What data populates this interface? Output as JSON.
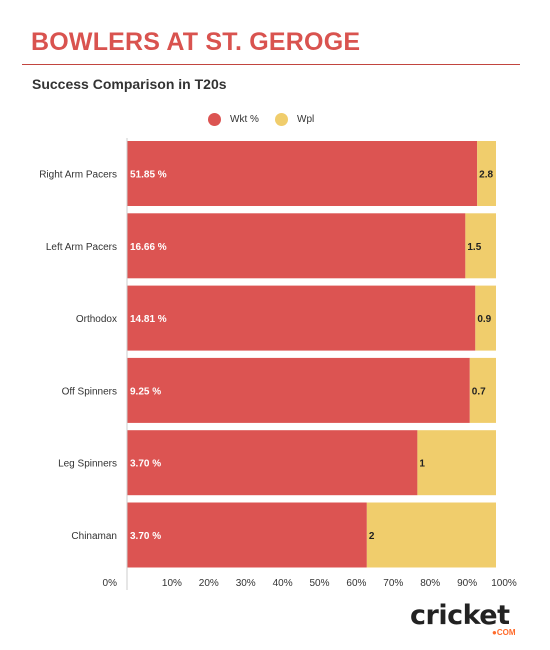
{
  "header": {
    "title": "BOWLERS AT ST. GEROGE",
    "subtitle": "Success Comparison in T20s"
  },
  "logo": {
    "word": "cricket",
    "suffix": "●COM"
  },
  "chart_data": {
    "type": "bar",
    "orientation": "horizontal",
    "stacked": "100%",
    "categories": [
      "Right Arm Pacers",
      "Left Arm Pacers",
      "Orthodox",
      "Off Spinners",
      "Leg Spinners",
      "Chinaman"
    ],
    "series": [
      {
        "name": "Wkt %",
        "color": "#dc5452",
        "values": [
          51.85,
          16.66,
          14.81,
          9.25,
          3.7,
          3.7
        ],
        "labels": [
          "51.85 %",
          "16.66 %",
          "14.81 %",
          "9.25 %",
          "3.70 %",
          "3.70 %"
        ]
      },
      {
        "name": "Wpl",
        "color": "#f0cd6c",
        "values": [
          2.8,
          1.5,
          0.9,
          0.7,
          1,
          2
        ],
        "labels": [
          "2.8",
          "1.5",
          "0.9",
          "0.7",
          "1",
          "2"
        ]
      }
    ],
    "x_ticks": [
      "0%",
      "10%",
      "20%",
      "30%",
      "40%",
      "50%",
      "60%",
      "70%",
      "80%",
      "90%",
      "100%"
    ],
    "xlim": [
      0,
      100
    ],
    "grid": false,
    "legend_position": "top-center"
  }
}
